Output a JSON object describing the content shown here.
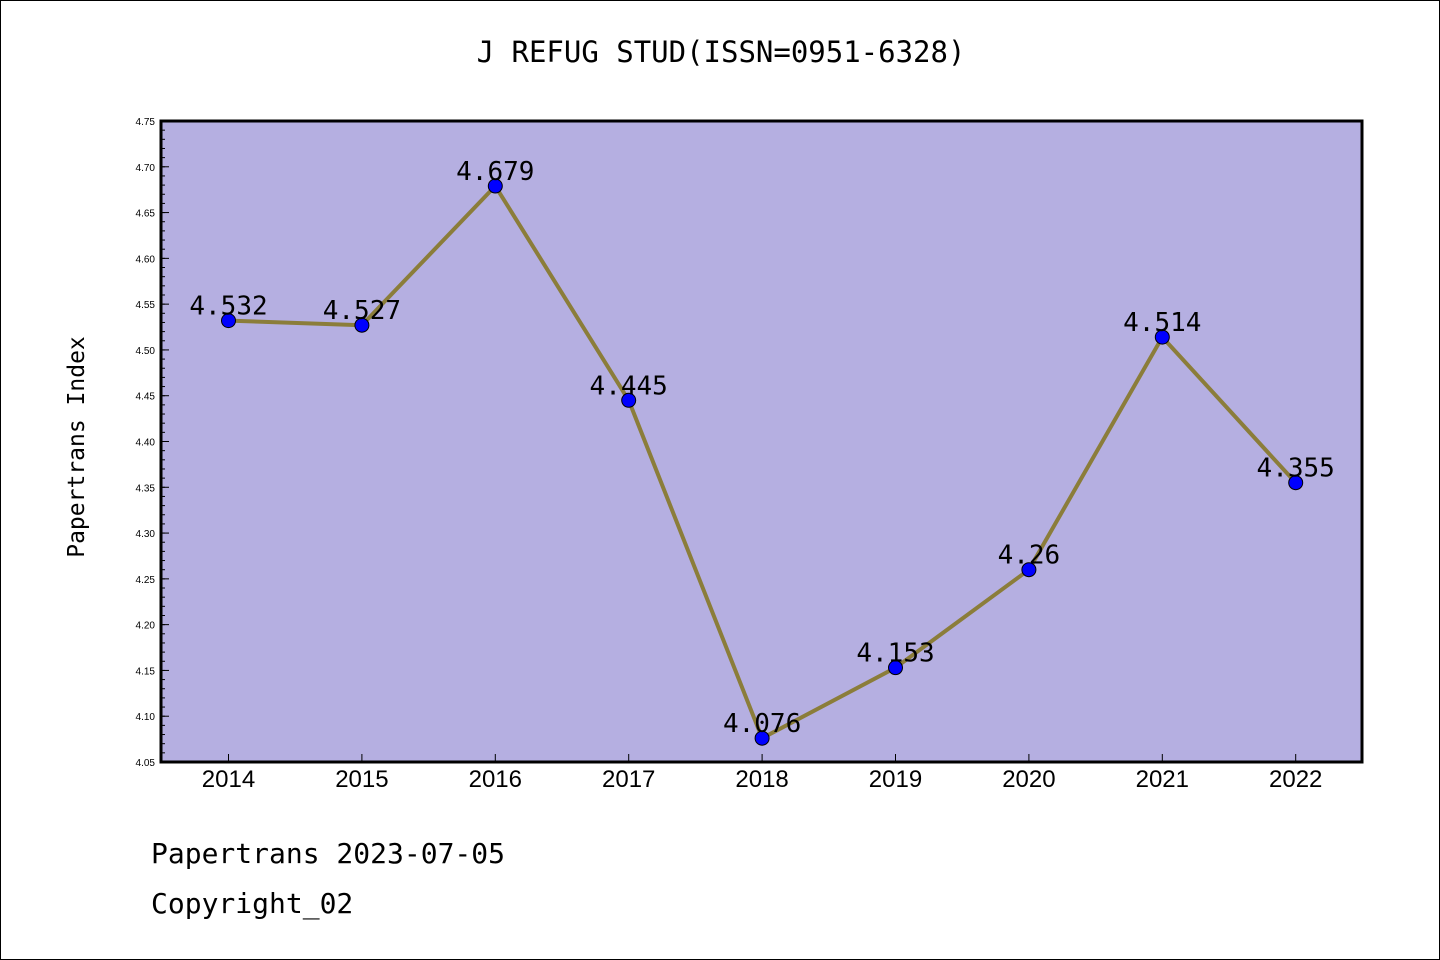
{
  "chart_data": {
    "type": "line",
    "title": "J REFUG STUD(ISSN=0951-6328)",
    "ylabel": "Papertrans Index",
    "xlabel": "",
    "categories": [
      "2014",
      "2015",
      "2016",
      "2017",
      "2018",
      "2019",
      "2020",
      "2021",
      "2022"
    ],
    "series": [
      {
        "values": [
          4.532,
          4.527,
          4.679,
          4.445,
          4.076,
          4.153,
          4.26,
          4.514,
          4.355
        ],
        "labels": [
          "4.532",
          "4.527",
          "4.679",
          "4.445",
          "4.076",
          "4.153",
          "4.26",
          "4.514",
          "4.355"
        ]
      }
    ],
    "ylim": [
      4.05,
      4.75
    ],
    "yticks": [
      "4.05",
      "4.10",
      "4.15",
      "4.20",
      "4.25",
      "4.30",
      "4.35",
      "4.40",
      "4.45",
      "4.50",
      "4.55",
      "4.60",
      "4.65",
      "4.70",
      "4.75"
    ],
    "grid": false,
    "colors": {
      "plot_background": "#b5afe1",
      "line": "#8b7d3a",
      "marker": "#0000ff"
    }
  },
  "footer": {
    "line1": "Papertrans 2023-07-05",
    "line2": "Copyright_02"
  }
}
